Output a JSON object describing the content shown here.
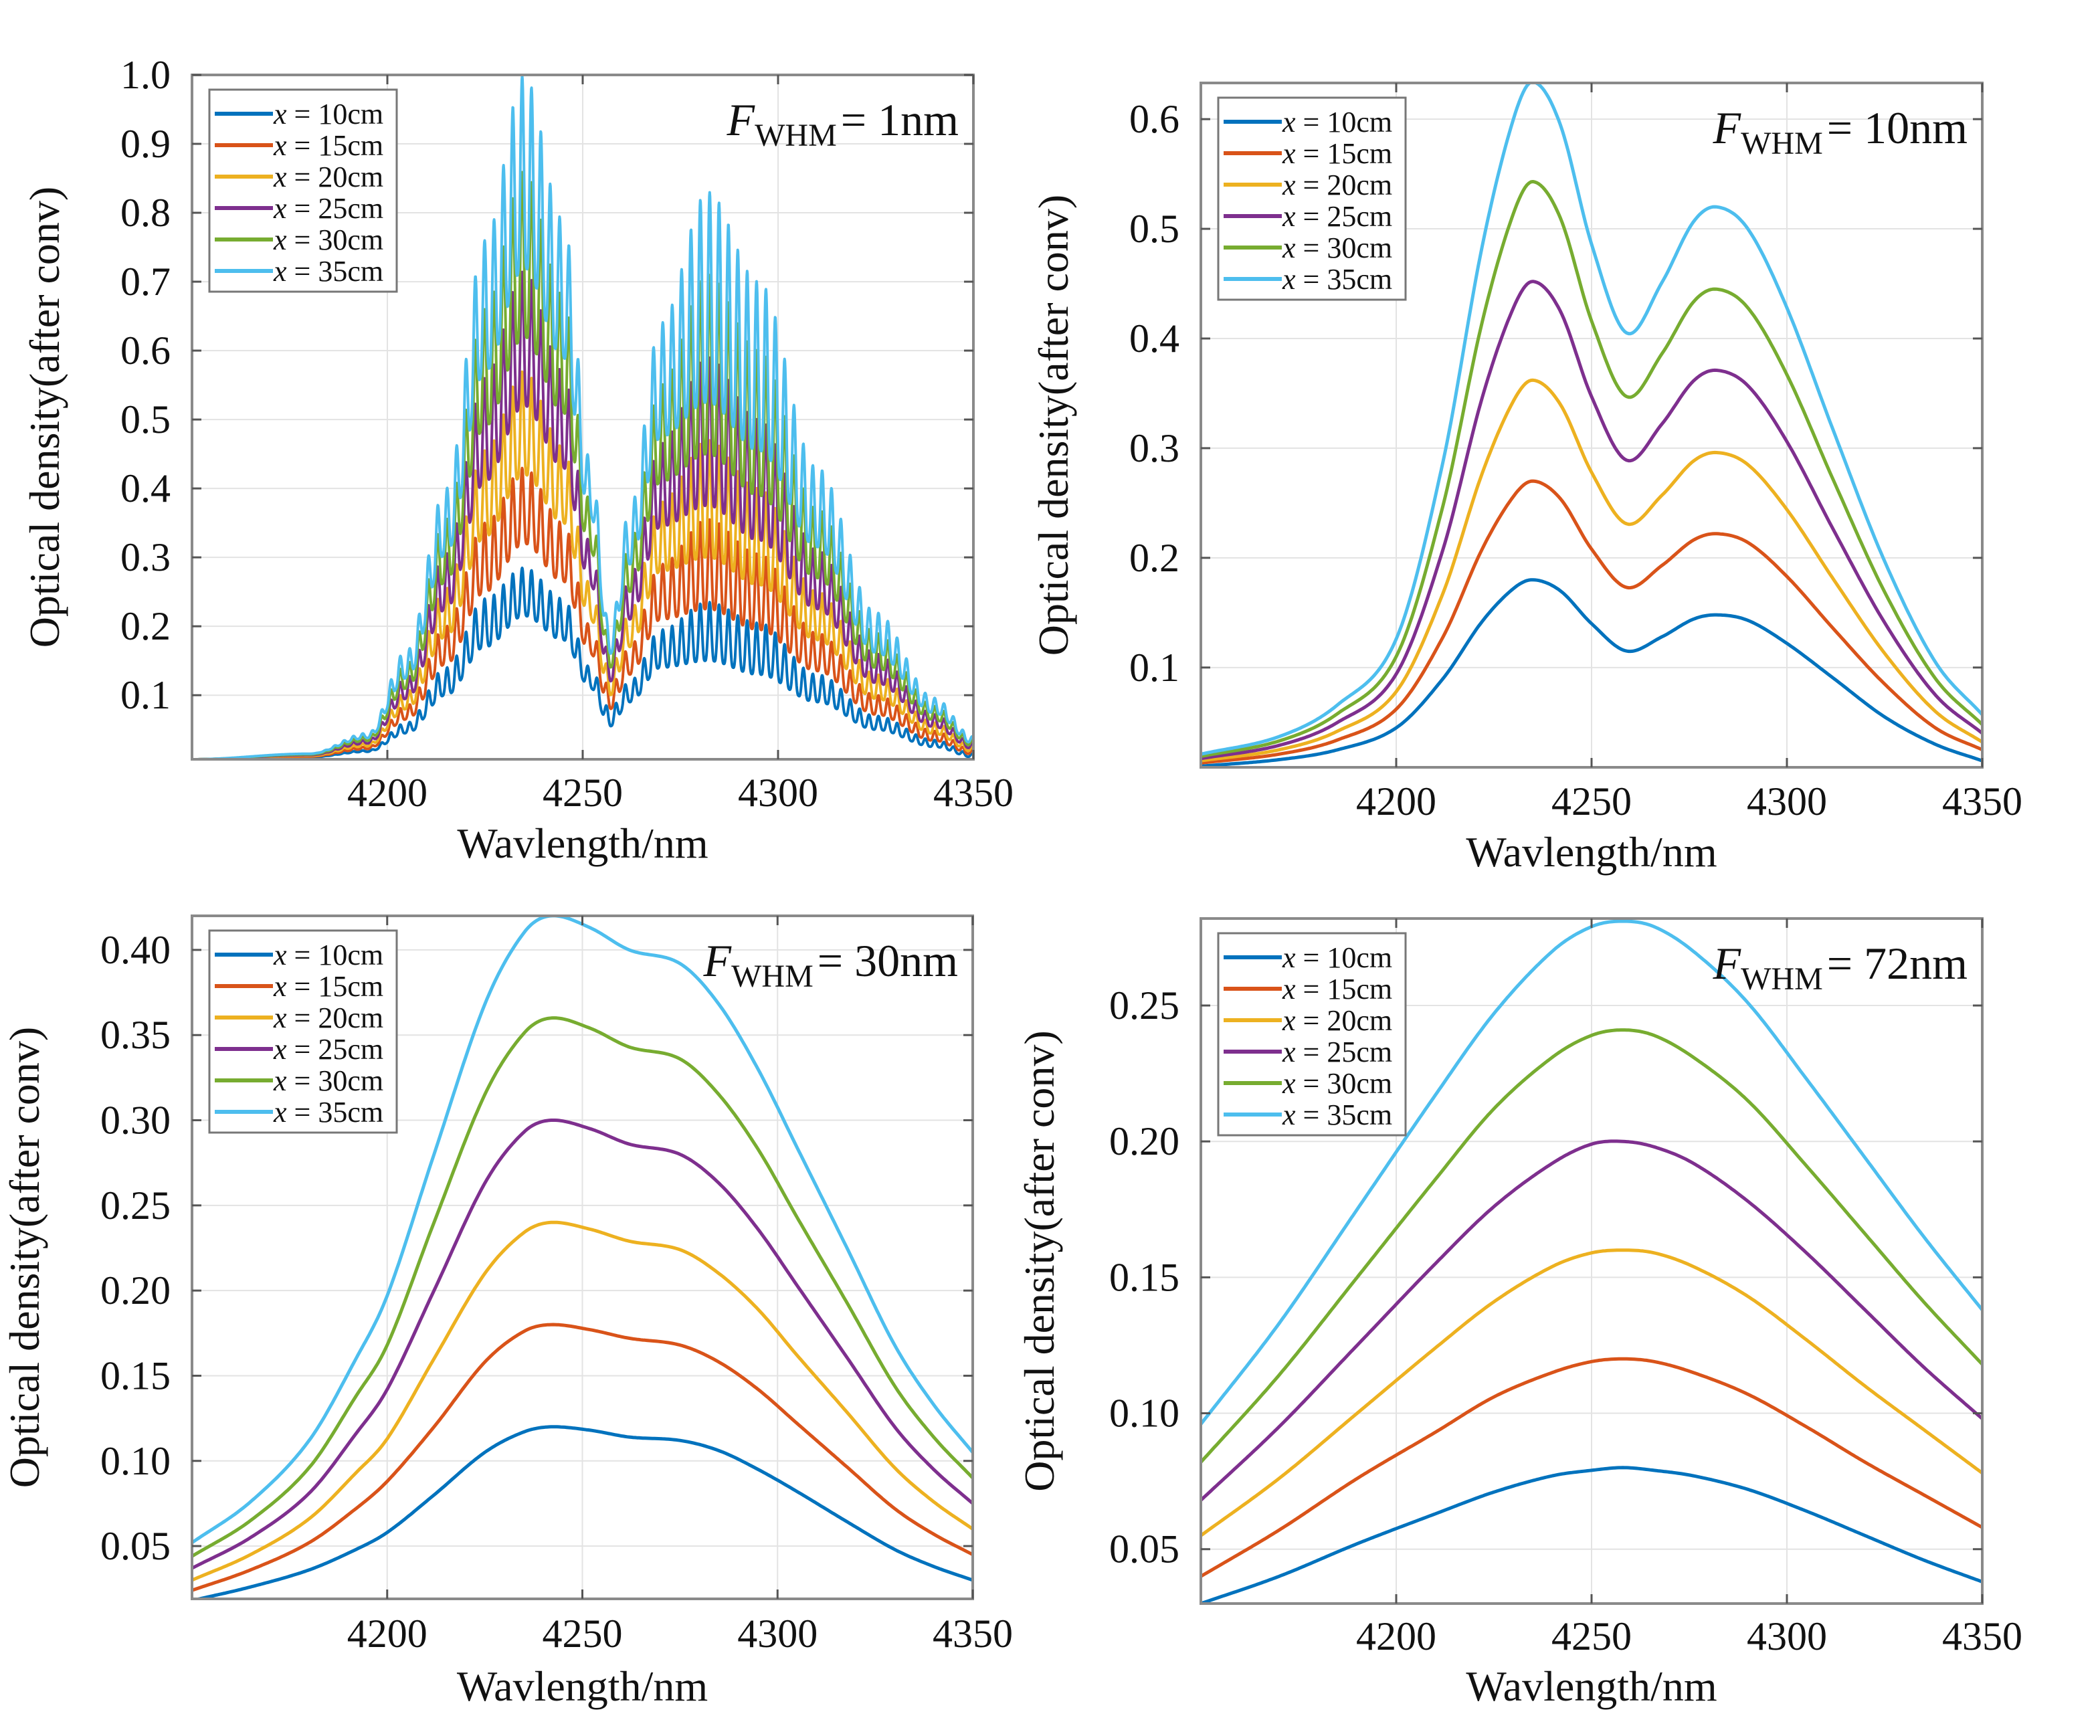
{
  "chart_data": [
    {
      "type": "line",
      "panel": "top-left",
      "title": "",
      "annotation": {
        "symbol": "F",
        "subscript": "WHM",
        "text": "= 1nm"
      },
      "xlabel": "Wavlength/nm",
      "ylabel": "Optical density(after conv)",
      "xlim": [
        4150,
        4350
      ],
      "ylim": [
        0.007,
        1.0
      ],
      "xticks": [
        4200,
        4250,
        4300,
        4350
      ],
      "xtick_labels": [
        "4200",
        "4250",
        "4300",
        "4350"
      ],
      "yticks": [
        0.1,
        0.2,
        0.3,
        0.4,
        0.5,
        0.6,
        0.7,
        0.8,
        0.9,
        1.0
      ],
      "ytick_labels": [
        "0.1",
        "0.2",
        "0.3",
        "0.4",
        "0.5",
        "0.6",
        "0.7",
        "0.8",
        "0.9",
        "1.0"
      ],
      "grid": true,
      "legend_position": "top-left",
      "oscillation_period_nm": 2.4,
      "note": "Fine rotational-line structure; each series given as upper (peak) and lower (trough) envelopes",
      "series": [
        {
          "name": "x = 10cm",
          "color": "#0072BD",
          "x": [
            4150,
            4180,
            4195,
            4205,
            4215,
            4225,
            4235,
            4245,
            4252,
            4257,
            4262,
            4270,
            4282,
            4295,
            4310,
            4325,
            4340,
            4350
          ],
          "upper": [
            0.007,
            0.01,
            0.02,
            0.06,
            0.14,
            0.24,
            0.285,
            0.24,
            0.14,
            0.08,
            0.12,
            0.195,
            0.235,
            0.205,
            0.13,
            0.07,
            0.035,
            0.015
          ],
          "lower": [
            0.007,
            0.01,
            0.018,
            0.045,
            0.1,
            0.17,
            0.215,
            0.18,
            0.11,
            0.055,
            0.09,
            0.14,
            0.15,
            0.13,
            0.09,
            0.05,
            0.025,
            0.01
          ]
        },
        {
          "name": "x = 15cm",
          "color": "#D95319",
          "x": [
            4150,
            4180,
            4195,
            4205,
            4215,
            4225,
            4235,
            4245,
            4252,
            4257,
            4262,
            4270,
            4282,
            4295,
            4310,
            4325,
            4340,
            4350
          ],
          "upper": [
            0.007,
            0.011,
            0.025,
            0.085,
            0.2,
            0.35,
            0.43,
            0.35,
            0.2,
            0.11,
            0.17,
            0.29,
            0.355,
            0.305,
            0.19,
            0.1,
            0.048,
            0.02
          ],
          "lower": [
            0.007,
            0.011,
            0.022,
            0.065,
            0.145,
            0.25,
            0.32,
            0.265,
            0.16,
            0.08,
            0.13,
            0.21,
            0.225,
            0.195,
            0.135,
            0.072,
            0.034,
            0.014
          ]
        },
        {
          "name": "x = 20cm",
          "color": "#EDB120",
          "x": [
            4150,
            4180,
            4195,
            4205,
            4215,
            4225,
            4235,
            4245,
            4252,
            4257,
            4262,
            4270,
            4282,
            4295,
            4310,
            4325,
            4340,
            4350
          ],
          "upper": [
            0.007,
            0.012,
            0.03,
            0.105,
            0.255,
            0.455,
            0.57,
            0.46,
            0.26,
            0.135,
            0.22,
            0.38,
            0.47,
            0.4,
            0.25,
            0.13,
            0.06,
            0.025
          ],
          "lower": [
            0.007,
            0.012,
            0.026,
            0.08,
            0.185,
            0.33,
            0.42,
            0.35,
            0.21,
            0.1,
            0.17,
            0.28,
            0.3,
            0.26,
            0.18,
            0.095,
            0.044,
            0.018
          ]
        },
        {
          "name": "x = 25cm",
          "color": "#7E2F8E",
          "x": [
            4150,
            4180,
            4195,
            4205,
            4215,
            4225,
            4235,
            4245,
            4252,
            4257,
            4262,
            4270,
            4282,
            4295,
            4310,
            4325,
            4340,
            4350
          ],
          "upper": [
            0.007,
            0.013,
            0.035,
            0.125,
            0.305,
            0.56,
            0.715,
            0.57,
            0.32,
            0.155,
            0.27,
            0.465,
            0.59,
            0.5,
            0.31,
            0.16,
            0.072,
            0.03
          ],
          "lower": [
            0.007,
            0.013,
            0.03,
            0.095,
            0.225,
            0.41,
            0.52,
            0.43,
            0.26,
            0.12,
            0.21,
            0.345,
            0.375,
            0.325,
            0.225,
            0.118,
            0.054,
            0.022
          ]
        },
        {
          "name": "x = 30cm",
          "color": "#77AC30",
          "x": [
            4150,
            4180,
            4195,
            4205,
            4215,
            4225,
            4235,
            4245,
            4252,
            4257,
            4262,
            4270,
            4282,
            4295,
            4310,
            4325,
            4340,
            4350
          ],
          "upper": [
            0.007,
            0.014,
            0.04,
            0.145,
            0.355,
            0.66,
            0.86,
            0.68,
            0.38,
            0.175,
            0.32,
            0.55,
            0.71,
            0.6,
            0.37,
            0.19,
            0.084,
            0.035
          ],
          "lower": [
            0.007,
            0.014,
            0.034,
            0.11,
            0.265,
            0.49,
            0.62,
            0.51,
            0.31,
            0.14,
            0.25,
            0.41,
            0.45,
            0.39,
            0.27,
            0.14,
            0.064,
            0.026
          ]
        },
        {
          "name": "x = 35cm",
          "color": "#4DBEEE",
          "x": [
            4150,
            4180,
            4195,
            4205,
            4215,
            4225,
            4235,
            4245,
            4252,
            4257,
            4262,
            4270,
            4282,
            4295,
            4310,
            4325,
            4340,
            4350
          ],
          "upper": [
            0.007,
            0.015,
            0.045,
            0.165,
            0.4,
            0.76,
            1.0,
            0.79,
            0.44,
            0.195,
            0.37,
            0.64,
            0.83,
            0.7,
            0.43,
            0.22,
            0.096,
            0.04
          ],
          "lower": [
            0.007,
            0.015,
            0.038,
            0.125,
            0.305,
            0.57,
            0.72,
            0.59,
            0.36,
            0.16,
            0.29,
            0.475,
            0.525,
            0.455,
            0.315,
            0.162,
            0.074,
            0.03
          ]
        }
      ]
    },
    {
      "type": "line",
      "panel": "top-right",
      "annotation": {
        "symbol": "F",
        "subscript": "WHM",
        "text": "= 10nm"
      },
      "xlabel": "Wavlength/nm",
      "ylabel": "Optical density(after conv)",
      "xlim": [
        4150,
        4350
      ],
      "ylim": [
        0.009,
        0.633
      ],
      "xticks": [
        4200,
        4250,
        4300,
        4350
      ],
      "xtick_labels": [
        "4200",
        "4250",
        "4300",
        "4350"
      ],
      "yticks": [
        0.1,
        0.2,
        0.3,
        0.4,
        0.5,
        0.6
      ],
      "ytick_labels": [
        "0.1",
        "0.2",
        "0.3",
        "0.4",
        "0.5",
        "0.6"
      ],
      "grid": true,
      "legend_position": "top-left",
      "x": [
        4150,
        4170,
        4185,
        4200,
        4212,
        4222,
        4230,
        4235,
        4242,
        4250,
        4259,
        4268,
        4276,
        4282,
        4290,
        4300,
        4312,
        4325,
        4338,
        4350
      ],
      "series": [
        {
          "name": "x = 10cm",
          "color": "#0072BD",
          "values": [
            0.01,
            0.016,
            0.025,
            0.045,
            0.09,
            0.142,
            0.172,
            0.18,
            0.17,
            0.14,
            0.115,
            0.128,
            0.144,
            0.148,
            0.143,
            0.122,
            0.09,
            0.055,
            0.03,
            0.015
          ]
        },
        {
          "name": "x = 15cm",
          "color": "#D95319",
          "values": [
            0.013,
            0.021,
            0.034,
            0.062,
            0.128,
            0.208,
            0.256,
            0.27,
            0.254,
            0.208,
            0.173,
            0.193,
            0.216,
            0.222,
            0.214,
            0.183,
            0.135,
            0.085,
            0.045,
            0.025
          ]
        },
        {
          "name": "x = 20cm",
          "color": "#EDB120",
          "values": [
            0.015,
            0.025,
            0.042,
            0.078,
            0.168,
            0.277,
            0.343,
            0.362,
            0.34,
            0.278,
            0.231,
            0.257,
            0.288,
            0.296,
            0.285,
            0.244,
            0.18,
            0.113,
            0.06,
            0.032
          ]
        },
        {
          "name": "x = 25cm",
          "color": "#7E2F8E",
          "values": [
            0.017,
            0.029,
            0.05,
            0.094,
            0.208,
            0.346,
            0.428,
            0.452,
            0.425,
            0.347,
            0.289,
            0.322,
            0.361,
            0.371,
            0.357,
            0.306,
            0.225,
            0.141,
            0.075,
            0.04
          ]
        },
        {
          "name": "x = 30cm",
          "color": "#77AC30",
          "values": [
            0.019,
            0.033,
            0.058,
            0.11,
            0.248,
            0.415,
            0.514,
            0.543,
            0.51,
            0.416,
            0.347,
            0.386,
            0.433,
            0.445,
            0.428,
            0.367,
            0.27,
            0.169,
            0.09,
            0.048
          ]
        },
        {
          "name": "x = 35cm",
          "color": "#4DBEEE",
          "values": [
            0.021,
            0.037,
            0.066,
            0.126,
            0.288,
            0.484,
            0.6,
            0.634,
            0.595,
            0.486,
            0.405,
            0.451,
            0.506,
            0.52,
            0.5,
            0.428,
            0.315,
            0.197,
            0.105,
            0.057
          ]
        }
      ]
    },
    {
      "type": "line",
      "panel": "bottom-left",
      "annotation": {
        "symbol": "F",
        "subscript": "WHM",
        "text": "= 30nm"
      },
      "xlabel": "Wavlength/nm",
      "ylabel": "Optical density(after conv)",
      "xlim": [
        4150,
        4350
      ],
      "ylim": [
        0.019,
        0.42
      ],
      "xticks": [
        4200,
        4250,
        4300,
        4350
      ],
      "xtick_labels": [
        "4200",
        "4250",
        "4300",
        "4350"
      ],
      "yticks": [
        0.05,
        0.1,
        0.15,
        0.2,
        0.25,
        0.3,
        0.35,
        0.4
      ],
      "ytick_labels": [
        "0.05",
        "0.10",
        "0.15",
        "0.20",
        "0.25",
        "0.30",
        "0.35",
        "0.40"
      ],
      "grid": true,
      "legend_position": "top-left",
      "x": [
        4150,
        4165,
        4180,
        4192,
        4200,
        4212,
        4225,
        4235,
        4242,
        4252,
        4262,
        4275,
        4285,
        4295,
        4305,
        4318,
        4330,
        4340,
        4350
      ],
      "series": [
        {
          "name": "x = 10cm",
          "color": "#0072BD",
          "values": [
            0.018,
            0.026,
            0.036,
            0.048,
            0.058,
            0.08,
            0.105,
            0.117,
            0.12,
            0.118,
            0.114,
            0.112,
            0.106,
            0.095,
            0.082,
            0.064,
            0.048,
            0.038,
            0.03
          ]
        },
        {
          "name": "x = 15cm",
          "color": "#D95319",
          "values": [
            0.024,
            0.036,
            0.052,
            0.072,
            0.088,
            0.12,
            0.158,
            0.176,
            0.18,
            0.177,
            0.172,
            0.168,
            0.158,
            0.142,
            0.122,
            0.096,
            0.072,
            0.057,
            0.045
          ]
        },
        {
          "name": "x = 20cm",
          "color": "#EDB120",
          "values": [
            0.03,
            0.045,
            0.066,
            0.093,
            0.113,
            0.16,
            0.21,
            0.234,
            0.24,
            0.236,
            0.229,
            0.224,
            0.21,
            0.189,
            0.162,
            0.128,
            0.096,
            0.076,
            0.06
          ]
        },
        {
          "name": "x = 25cm",
          "color": "#7E2F8E",
          "values": [
            0.037,
            0.055,
            0.081,
            0.116,
            0.142,
            0.2,
            0.263,
            0.293,
            0.3,
            0.295,
            0.286,
            0.28,
            0.263,
            0.236,
            0.203,
            0.16,
            0.12,
            0.095,
            0.075
          ]
        },
        {
          "name": "x = 30cm",
          "color": "#77AC30",
          "values": [
            0.044,
            0.065,
            0.096,
            0.138,
            0.168,
            0.24,
            0.315,
            0.351,
            0.36,
            0.354,
            0.343,
            0.336,
            0.315,
            0.283,
            0.243,
            0.192,
            0.144,
            0.114,
            0.09
          ]
        },
        {
          "name": "x = 35cm",
          "color": "#4DBEEE",
          "values": [
            0.052,
            0.076,
            0.112,
            0.16,
            0.197,
            0.28,
            0.368,
            0.41,
            0.42,
            0.413,
            0.4,
            0.392,
            0.368,
            0.33,
            0.284,
            0.224,
            0.168,
            0.133,
            0.105
          ]
        }
      ]
    },
    {
      "type": "line",
      "panel": "bottom-right",
      "annotation": {
        "symbol": "F",
        "subscript": "WHM",
        "text": "= 72nm"
      },
      "xlabel": "Wavlength/nm",
      "ylabel": "Optical density(after conv)",
      "xlim": [
        4150,
        4350
      ],
      "ylim": [
        0.03,
        0.282
      ],
      "xticks": [
        4200,
        4250,
        4300,
        4350
      ],
      "xtick_labels": [
        "4200",
        "4250",
        "4300",
        "4350"
      ],
      "yticks": [
        0.05,
        0.1,
        0.15,
        0.2,
        0.25
      ],
      "ytick_labels": [
        "0.05",
        "0.10",
        "0.15",
        "0.20",
        "0.25"
      ],
      "grid": true,
      "legend_position": "top-left",
      "x": [
        4150,
        4170,
        4190,
        4210,
        4225,
        4240,
        4250,
        4258,
        4266,
        4276,
        4290,
        4305,
        4320,
        4335,
        4350
      ],
      "series": [
        {
          "name": "x = 10cm",
          "color": "#0072BD",
          "values": [
            0.03,
            0.04,
            0.052,
            0.063,
            0.071,
            0.077,
            0.079,
            0.08,
            0.079,
            0.077,
            0.072,
            0.064,
            0.055,
            0.046,
            0.038
          ]
        },
        {
          "name": "x = 15cm",
          "color": "#D95319",
          "values": [
            0.04,
            0.057,
            0.076,
            0.093,
            0.106,
            0.115,
            0.119,
            0.12,
            0.119,
            0.115,
            0.107,
            0.095,
            0.082,
            0.07,
            0.058
          ]
        },
        {
          "name": "x = 20cm",
          "color": "#EDB120",
          "values": [
            0.055,
            0.076,
            0.1,
            0.124,
            0.141,
            0.154,
            0.159,
            0.16,
            0.159,
            0.154,
            0.143,
            0.127,
            0.11,
            0.094,
            0.078
          ]
        },
        {
          "name": "x = 25cm",
          "color": "#7E2F8E",
          "values": [
            0.068,
            0.095,
            0.125,
            0.155,
            0.176,
            0.192,
            0.199,
            0.2,
            0.198,
            0.192,
            0.178,
            0.159,
            0.138,
            0.117,
            0.098
          ]
        },
        {
          "name": "x = 30cm",
          "color": "#77AC30",
          "values": [
            0.082,
            0.114,
            0.15,
            0.186,
            0.212,
            0.231,
            0.239,
            0.241,
            0.239,
            0.231,
            0.215,
            0.191,
            0.166,
            0.141,
            0.118
          ]
        },
        {
          "name": "x = 35cm",
          "color": "#4DBEEE",
          "values": [
            0.096,
            0.133,
            0.175,
            0.217,
            0.247,
            0.27,
            0.279,
            0.281,
            0.279,
            0.27,
            0.251,
            0.223,
            0.194,
            0.165,
            0.138
          ]
        }
      ]
    }
  ]
}
